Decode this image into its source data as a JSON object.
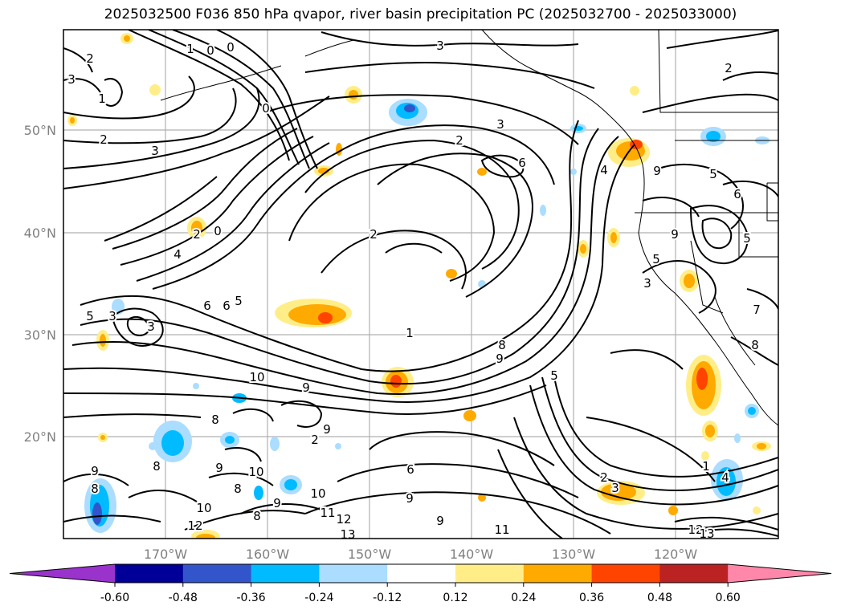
{
  "title": "2025032500 F036 850 hPa qvapor, river basin precipitation PC (2025032700 - 2025033000)",
  "longitude_ticks": [
    "170°W",
    "160°W",
    "150°W",
    "140°W",
    "130°W",
    "120°W"
  ],
  "latitude_ticks": [
    "50°N",
    "40°N",
    "30°N",
    "20°N"
  ],
  "contour_labels": [
    "3",
    "2",
    "1",
    "0",
    "2",
    "3",
    "2",
    "3",
    "4",
    "6",
    "2",
    "2",
    "0",
    "4",
    "5",
    "6",
    "7",
    "5",
    "3",
    "1",
    "0",
    "8",
    "9",
    "10",
    "9",
    "8",
    "7",
    "6",
    "5",
    "10",
    "9",
    "8",
    "9",
    "8",
    "10",
    "11",
    "12",
    "13",
    "11",
    "12",
    "9",
    "6",
    "2",
    "3",
    "1",
    "4",
    "9",
    "5",
    "6",
    "5",
    "8",
    "7",
    "12",
    "13",
    "5"
  ],
  "colorbar": {
    "levels": [
      "-0.60",
      "-0.48",
      "-0.36",
      "-0.24",
      "-0.12",
      "0.12",
      "0.24",
      "0.36",
      "0.48",
      "0.60"
    ],
    "colors": [
      "#9933cc",
      "#000099",
      "#3355cc",
      "#00bbff",
      "#aaddff",
      "#ffffff",
      "#ffee88",
      "#ffaa00",
      "#ff4400",
      "#bb2222",
      "#ff88aa"
    ]
  }
}
